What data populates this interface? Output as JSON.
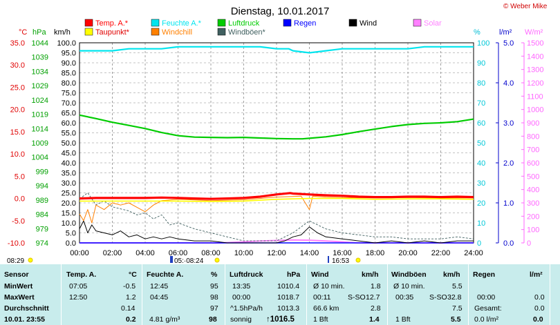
{
  "title": "Dienstag, 10.01.2017",
  "copyright": "© Weber Mike",
  "legend": [
    {
      "label": "Temp. A.*",
      "color": "#ff0000"
    },
    {
      "label": "Taupunkt*",
      "color": "#ffff00"
    },
    {
      "label": "Feuchte A.*",
      "color": "#00e5ee"
    },
    {
      "label": "Windchill",
      "color": "#ff8000"
    },
    {
      "label": "Luftdruck",
      "color": "#00cc00"
    },
    {
      "label": "Windböen*",
      "color": "#406060"
    },
    {
      "label": "Regen",
      "color": "#0000ff"
    },
    {
      "label": "Wind",
      "color": "#000000"
    },
    {
      "label": "Solar",
      "color": "#ff80ff"
    }
  ],
  "axis_units": {
    "temp": "°C",
    "press": "hPa",
    "wind": "km/h",
    "hum": "%",
    "rain": "l/m²",
    "solar": "W/m²"
  },
  "markers": {
    "sunrise": "08:29",
    "moon": "05:·08:24",
    "sunset": "16:53"
  },
  "chart_data": {
    "type": "line",
    "x_unit": "time (hh:mm)",
    "xlim": [
      "00:00",
      "24:00"
    ],
    "x_ticks": [
      "00:00",
      "02:00",
      "04:00",
      "06:00",
      "08:00",
      "10:00",
      "12:00",
      "14:00",
      "16:00",
      "18:00",
      "20:00",
      "22:00",
      "24:00"
    ],
    "axes": {
      "temp": {
        "label": "°C",
        "min": -10,
        "max": 35,
        "ticks": [
          -10,
          -5,
          0,
          5,
          10,
          15,
          20,
          25,
          30,
          35
        ]
      },
      "press": {
        "label": "hPa",
        "min": 974,
        "max": 1044,
        "ticks": [
          974,
          979,
          984,
          989,
          994,
          999,
          1004,
          1009,
          1014,
          1019,
          1024,
          1029,
          1034,
          1039,
          1044
        ]
      },
      "wind": {
        "label": "km/h",
        "min": 0,
        "max": 100,
        "ticks": [
          0,
          5,
          10,
          15,
          20,
          25,
          30,
          35,
          40,
          45,
          50,
          55,
          60,
          65,
          70,
          75,
          80,
          85,
          90,
          95,
          100
        ]
      },
      "hum": {
        "label": "%",
        "min": 0,
        "max": 100,
        "ticks": [
          0,
          10,
          20,
          30,
          40,
          50,
          60,
          70,
          80,
          90,
          100
        ]
      },
      "rain": {
        "label": "l/m²",
        "min": 0,
        "max": 5,
        "ticks": [
          0,
          1,
          2,
          3,
          4,
          5
        ]
      },
      "solar": {
        "label": "W/m²",
        "min": 0,
        "max": 1500,
        "ticks": [
          0,
          100,
          200,
          300,
          400,
          500,
          600,
          700,
          800,
          900,
          1000,
          1100,
          1200,
          1300,
          1400,
          1500
        ]
      }
    },
    "series": [
      {
        "name": "Temp. A.*",
        "axis": "temp",
        "x": [
          0,
          1,
          2,
          3,
          4,
          5,
          6,
          7,
          8,
          9,
          10,
          11,
          12,
          12.83,
          13,
          14,
          15,
          16,
          17,
          18,
          19,
          20,
          21,
          22,
          23,
          24
        ],
        "y": [
          0.0,
          0.1,
          0.1,
          0.1,
          0.1,
          0.2,
          0.1,
          0.0,
          -0.1,
          0.0,
          0.1,
          0.4,
          0.9,
          1.2,
          1.1,
          0.9,
          0.7,
          0.6,
          0.4,
          0.3,
          0.3,
          0.4,
          0.4,
          0.3,
          0.4,
          0.3
        ]
      },
      {
        "name": "Taupunkt*",
        "axis": "temp",
        "x": [
          0,
          2,
          4,
          6,
          8,
          10,
          12,
          14,
          16,
          18,
          20,
          22,
          24
        ],
        "y": [
          -0.6,
          -0.6,
          -0.6,
          -0.6,
          -0.7,
          -0.6,
          -0.2,
          0.0,
          0.0,
          -0.2,
          -0.1,
          -0.1,
          -0.2
        ]
      },
      {
        "name": "Windchill",
        "axis": "temp",
        "x": [
          0,
          0.25,
          0.5,
          0.75,
          1,
          1.5,
          2,
          2.5,
          3,
          3.5,
          4,
          4.5,
          5,
          6,
          8,
          10,
          12,
          13.5,
          14,
          14.2,
          15,
          16,
          18,
          20,
          22,
          24
        ],
        "y": [
          -3.5,
          -5.0,
          -2.5,
          -5.5,
          -1.5,
          -2.5,
          -1.0,
          -1.5,
          -1.0,
          -2.0,
          -3.0,
          -1.5,
          -0.5,
          -0.2,
          -0.5,
          -0.3,
          0.3,
          0.5,
          -2.5,
          0.5,
          0.3,
          0.2,
          0.1,
          0.2,
          0.1,
          0.1
        ]
      },
      {
        "name": "Feuchte A.*",
        "axis": "hum",
        "x": [
          0,
          1,
          2,
          3,
          4,
          5,
          6,
          7,
          8,
          9,
          10,
          11,
          12,
          12.75,
          13,
          14,
          15,
          16,
          17,
          18,
          19,
          20,
          21,
          22,
          23,
          24
        ],
        "y": [
          96,
          96,
          96,
          97,
          97,
          97,
          98,
          98,
          98,
          98,
          98,
          98,
          97,
          97,
          96,
          95,
          96,
          97,
          97,
          97,
          97,
          97,
          98,
          98,
          98,
          98
        ]
      },
      {
        "name": "Luftdruck",
        "axis": "press",
        "x": [
          0,
          1,
          2,
          3,
          4,
          5,
          6,
          7,
          8,
          9,
          10,
          11,
          12,
          13,
          13.58,
          14,
          15,
          16,
          17,
          18,
          19,
          20,
          21,
          22,
          23,
          24
        ],
        "y": [
          1018.7,
          1017.5,
          1016.2,
          1015.1,
          1014.0,
          1012.6,
          1011.5,
          1011.0,
          1010.9,
          1010.8,
          1010.9,
          1010.7,
          1010.5,
          1010.4,
          1010.4,
          1010.6,
          1011.1,
          1011.9,
          1012.9,
          1013.8,
          1014.7,
          1015.4,
          1015.8,
          1016.0,
          1016.4,
          1017.3
        ]
      },
      {
        "name": "Wind",
        "axis": "wind",
        "x": [
          0,
          0.25,
          0.5,
          0.75,
          1,
          1.5,
          2,
          2.5,
          3,
          3.5,
          4,
          4.5,
          5,
          5.5,
          6,
          7,
          8,
          9,
          10,
          11,
          12,
          12.5,
          13,
          13.5,
          14,
          14.5,
          15,
          16,
          17,
          18,
          19,
          20,
          21,
          22,
          23,
          24
        ],
        "y": [
          7,
          11,
          5,
          9,
          6,
          5,
          4,
          6,
          3,
          4,
          2,
          3,
          2,
          3,
          2,
          1,
          1,
          0,
          0,
          0,
          0,
          1,
          3,
          4,
          8,
          5,
          3,
          2,
          1,
          0,
          1,
          0,
          1,
          0,
          1,
          1
        ]
      },
      {
        "name": "Windböen*",
        "axis": "wind",
        "x": [
          0,
          0.5,
          1,
          1.5,
          2,
          2.5,
          3,
          3.5,
          4,
          4.5,
          5,
          5.5,
          6,
          7,
          8,
          9,
          10,
          11,
          12,
          12.5,
          13,
          13.5,
          14,
          14.5,
          15,
          16,
          17,
          18,
          19,
          20,
          21,
          22,
          23,
          24
        ],
        "y": [
          22,
          25,
          19,
          21,
          18,
          17,
          16,
          14,
          15,
          12,
          14,
          9,
          10,
          7,
          5,
          3,
          1,
          1,
          1,
          3,
          5,
          8,
          11,
          9,
          7,
          5,
          4,
          3,
          3,
          2,
          2,
          2,
          3,
          2
        ]
      },
      {
        "name": "Solar",
        "axis": "solar",
        "x": [
          0,
          8.4,
          9,
          10,
          11,
          12,
          13,
          14,
          15,
          16,
          16.9,
          24
        ],
        "y": [
          0,
          0,
          2,
          8,
          14,
          18,
          22,
          20,
          14,
          8,
          0,
          0
        ]
      },
      {
        "name": "Regen",
        "axis": "rain",
        "x": [
          0,
          24
        ],
        "y": [
          0,
          0
        ]
      }
    ]
  },
  "table": {
    "sensor": {
      "header": "Sensor",
      "rows": [
        "MinWert",
        "MaxWert",
        "Durchschnitt",
        "10.01. 23:55"
      ]
    },
    "temp": {
      "header": "Temp. A.",
      "unit": "°C",
      "rows": [
        [
          "07:05",
          "-0.5"
        ],
        [
          "12:50",
          "1.2"
        ],
        [
          "",
          "0.14"
        ],
        [
          "",
          "0.2"
        ]
      ]
    },
    "feuchte": {
      "header": "Feuchte A.",
      "unit": "%",
      "rows": [
        [
          "12:45",
          "95"
        ],
        [
          "04:45",
          "98"
        ],
        [
          "",
          "97"
        ],
        [
          "4.81 g/m³",
          "98"
        ]
      ]
    },
    "luftdruck": {
      "header": "Luftdruck",
      "unit": "hPa",
      "rows": [
        [
          "13:35",
          "1010.4"
        ],
        [
          "00:00",
          "1018.7"
        ],
        [
          "^1.5hPa/h",
          "1013.3"
        ],
        [
          "sonnig",
          "↑1016.5"
        ]
      ]
    },
    "wind": {
      "header": "Wind",
      "unit": "km/h",
      "rows": [
        [
          "Ø 10 min.",
          "",
          "1.8"
        ],
        [
          "00:11",
          "S-SO",
          "12.7"
        ],
        [
          "66.6 km",
          "",
          "2.8"
        ],
        [
          "1 Bft",
          "",
          "1.4"
        ]
      ]
    },
    "boeen": {
      "header": "Windböen",
      "unit": "km/h",
      "rows": [
        [
          "Ø 10 min.",
          "",
          "5.5"
        ],
        [
          "00:35",
          "S-SO",
          "32.8"
        ],
        [
          "",
          "",
          "7.5"
        ],
        [
          "1 Bft",
          "",
          "5.5"
        ]
      ]
    },
    "regen": {
      "header": "Regen",
      "unit": "l/m²",
      "rows": [
        [
          "",
          ""
        ],
        [
          "00:00",
          "0.0"
        ],
        [
          "Gesamt:",
          "0.0"
        ],
        [
          "0.0 l/m²",
          "0.0"
        ]
      ]
    }
  }
}
